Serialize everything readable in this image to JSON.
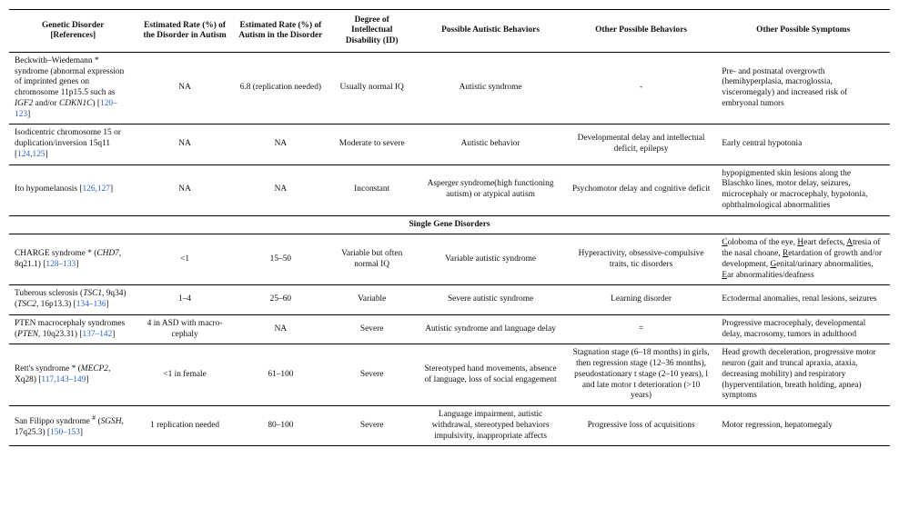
{
  "headers": {
    "c1": "Genetic Disorder\n[References]",
    "c2": "Estimated Rate (%) of the Disorder in Autism",
    "c3": "Estimated Rate (%) of Autism in the Disorder",
    "c4": "Degree of Intellectual Disability (ID)",
    "c5": "Possible Autistic Behaviors",
    "c6": "Other Possible Behaviors",
    "c7": "Other Possible Symptoms"
  },
  "section_label": "Single Gene Disorders",
  "rows": {
    "r1": {
      "disorder_pre": "Beckwith–Wiedemann * syndrome (abnormal expression of imprinted genes on chromosome 11p15.5 such as ",
      "gene1": "IGF2",
      "mid": " and/or ",
      "gene2": "CDKN1C",
      "post": ") [",
      "ref": "120–123",
      "close": "]",
      "rate_disorder": "NA",
      "rate_autism": "6.8 (replication needed)",
      "id": "Usually normal IQ",
      "autistic": "Autistic syndrome",
      "other_beh": "-",
      "symptoms": "Pre- and postnatal overgrowth (hemihyperplasia, macroglossia, visceromegaly) and increased risk of embryonal tumors"
    },
    "r2": {
      "disorder_pre": "Isodicentric chromosome 15 or duplication/inversion 15q11 [",
      "ref": "124,125",
      "close": "]",
      "rate_disorder": "NA",
      "rate_autism": "NA",
      "id": "Moderate to severe",
      "autistic": "Autistic behavior",
      "other_beh": "Developmental delay and intellectual deficit, epilepsy",
      "symptoms": "Early central hypotonia"
    },
    "r3": {
      "disorder_pre": "Ito hypomelanosis [",
      "ref": "126,127",
      "close": "]",
      "rate_disorder": "NA",
      "rate_autism": "NA",
      "id": "Inconstant",
      "autistic": "Asperger syndrome(high functioning autism) or atypical autism",
      "other_beh": "Psychomotor delay and cognitive deficit",
      "symptoms": "hypopigmented skin lesions along the Blaschko lines, motor delay, seizures, microcephaly or macrocephaly, hypotonia, ophthalmological abnormalities"
    },
    "r4": {
      "disorder_pre": "CHARGE syndrome * (",
      "gene1": "CHD7",
      "post": ", 8q21.1) [",
      "ref": "128–133",
      "close": "]",
      "rate_disorder": "<1",
      "rate_autism": "15–50",
      "id": "Variable but often normal IQ",
      "autistic": "Variable autistic syndrome",
      "other_beh": "Hyperactivity, obsessive-compulsive traits, tic disorders",
      "sym_parts": {
        "a": "oloboma of the eye, ",
        "b": "eart defects, ",
        "c": "tresia of the nasal choane, ",
        "d": "etardation of growth and/or development, ",
        "e": "enital/urinary abnormalities, ",
        "f": "ar abnormalities/deafness"
      }
    },
    "r5": {
      "disorder_pre": "Tuberous sclerosis (",
      "gene1": "TSC1",
      "mid": ", 9q34) (",
      "gene2": "TSC2",
      "post": ", 16p13.3) [",
      "ref": "134–136",
      "close": "]",
      "rate_disorder": "1–4",
      "rate_autism": "25–60",
      "id": "Variable",
      "autistic": "Severe autistic syndrome",
      "other_beh": "Learning disorder",
      "symptoms": "Ectodermal anomalies, renal lesions, seizures"
    },
    "r6": {
      "disorder_pre": "PTEN macrocephaly syndromes (",
      "gene1": "PTEN",
      "post": ", 10q23.31) [",
      "ref": "137–142",
      "close": "]",
      "rate_disorder": "4 in ASD with macro-cephaly",
      "rate_autism": "NA",
      "id": "Severe",
      "autistic": "Autistic syndrome and language delay",
      "other_beh": "=",
      "symptoms": "Progressive macrocephaly, developmental delay, macrosomy, tumors in adulthood"
    },
    "r7": {
      "disorder_pre": "Rett's syndrome * (",
      "gene1": "MECP2",
      "post": ", Xq28) [",
      "ref": "117,143–149",
      "close": "]",
      "rate_disorder": "<1 in female",
      "rate_autism": "61–100",
      "id": "Severe",
      "autistic": "Stereotyped hand movements, absence of language, loss of social engagement",
      "other_beh": "Stagnation stage (6–18 months) in girls, then regression stage (12–36 months), pseudostationary t stage (2–10 years), l and late motor t deterioration (>10 years)",
      "symptoms": "Head growth deceleration, progressive motor neuron (gait and truncal apraxia, ataxia, decreasing mobility) and respiratory (hyperventilation, breath holding, apnea) symptoms"
    },
    "r8": {
      "disorder_pre": "San Filippo syndrome ",
      "sup": "#",
      "mid": " (",
      "gene1": "SGSH",
      "post": ", 17q25.3) [",
      "ref": "150–153",
      "close": "]",
      "rate_disorder": "1 replication needed",
      "rate_autism": "80–100",
      "id": "Severe",
      "autistic": "Language impairment, autistic withdrawal, stereotyped behaviors impulsivity, inappropriate affects",
      "other_beh": "Progressive loss of acquisitions",
      "symptoms": "Motor regression, hepatomegaly"
    }
  }
}
